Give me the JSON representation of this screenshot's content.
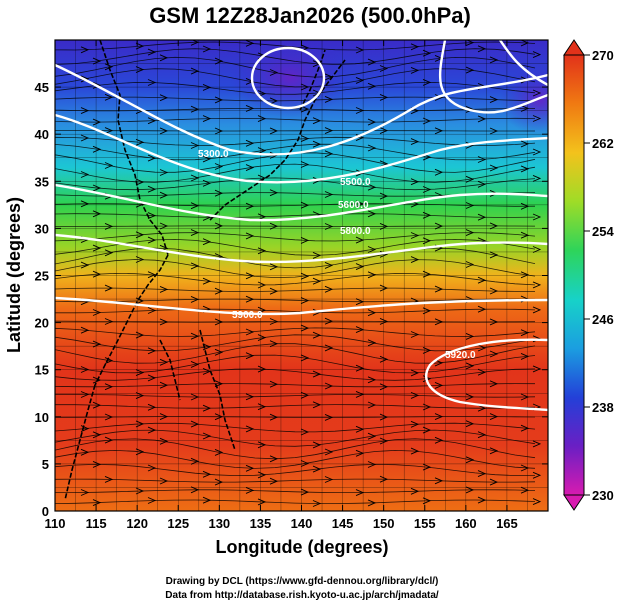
{
  "title": "GSM 12Z28Jan2026 (500.0hPa)",
  "xaxis": {
    "label": "Longitude (degrees)",
    "range": [
      110,
      170
    ],
    "ticks": [
      110,
      115,
      120,
      125,
      130,
      135,
      140,
      145,
      150,
      155,
      160,
      165
    ]
  },
  "yaxis": {
    "label": "Latitude  (degrees)",
    "range": [
      0,
      50
    ],
    "ticks": [
      0,
      5,
      10,
      15,
      20,
      25,
      30,
      35,
      40,
      45
    ]
  },
  "colorbar": {
    "range": [
      230,
      270
    ],
    "ticks": [
      230,
      238,
      246,
      254,
      262,
      270
    ],
    "stops": [
      "#d81bb0",
      "#6a1fc4",
      "#2340d8",
      "#1b9ee0",
      "#17d2c8",
      "#2ed45a",
      "#9fdc27",
      "#f3c21c",
      "#f07a12",
      "#e2321a"
    ]
  },
  "grid": true,
  "contours": {
    "color": "#ffffff",
    "labels": [
      "5300.0",
      "5500.0",
      "5600.0",
      "5800.0",
      "5900.0",
      "5920.0"
    ]
  },
  "credits": {
    "line1": "Drawing by DCL (https://www.gfd-dennou.org/library/dcl/)",
    "line2": "Data from http://database.rish.kyoto-u.ac.jp/arch/jmadata/"
  }
}
